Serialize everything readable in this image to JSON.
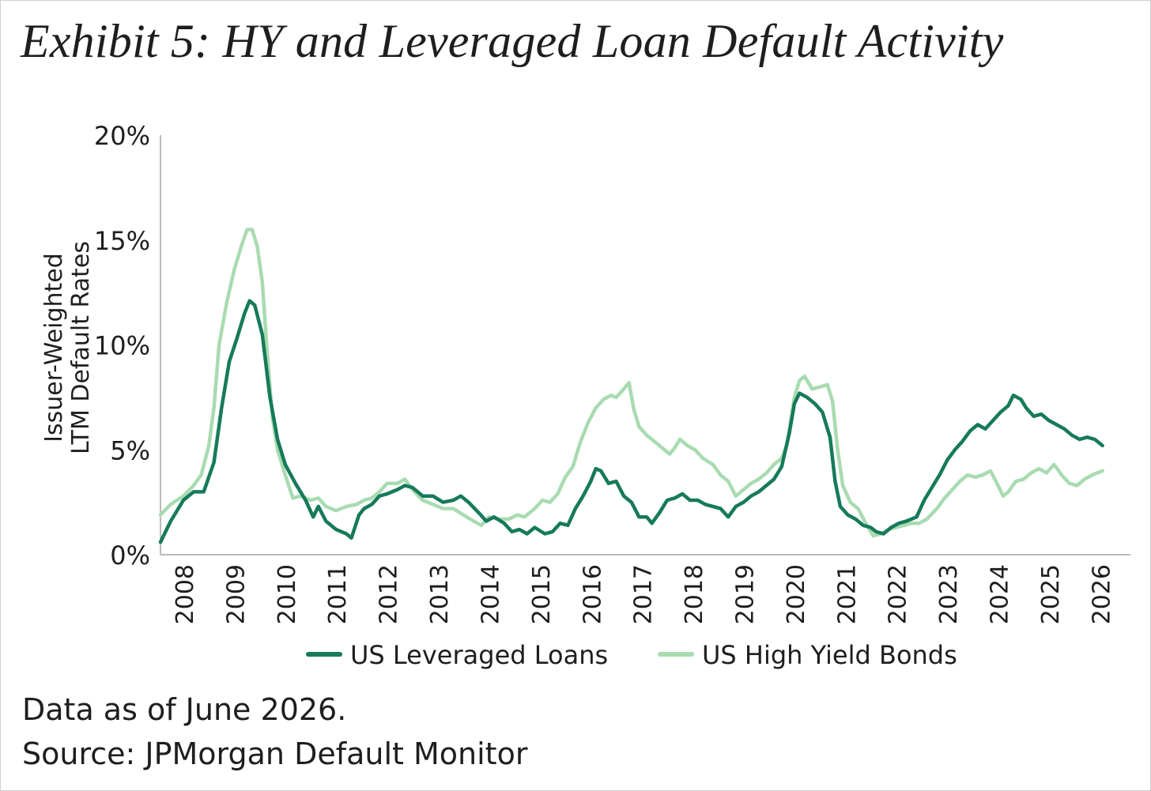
{
  "title": "Exhibit 5: HY and Leveraged Loan Default Activity",
  "footnote": "Data as of June 2026.",
  "source": "Source: JPMorgan Default Monitor",
  "colors": {
    "loans": "#167a5b",
    "bonds": "#a9dbb1",
    "axis": "#bbbbbb",
    "text": "#1e1e1e"
  },
  "chart_data": {
    "type": "line",
    "ylabel": [
      "Issuer-Weighted",
      "LTM Default Rates"
    ],
    "xlabel": "",
    "ylim": [
      0,
      20
    ],
    "xlim": [
      2007.55,
      2026.6
    ],
    "yticks": [
      "0%",
      "5%",
      "10%",
      "15%",
      "20%"
    ],
    "xticks": [
      "2008",
      "2009",
      "2010",
      "2011",
      "2012",
      "2013",
      "2014",
      "2015",
      "2016",
      "2017",
      "2018",
      "2019",
      "2020",
      "2021",
      "2022",
      "2023",
      "2024",
      "2025",
      "2026"
    ],
    "grid": false,
    "legend": "bottom-center",
    "series": [
      {
        "name": "US Leveraged Loans",
        "points": [
          [
            2007.55,
            0.6
          ],
          [
            2007.75,
            1.6
          ],
          [
            2008.0,
            2.6
          ],
          [
            2008.2,
            3.0
          ],
          [
            2008.4,
            3.0
          ],
          [
            2008.6,
            4.4
          ],
          [
            2008.75,
            7.0
          ],
          [
            2008.9,
            9.2
          ],
          [
            2009.05,
            10.3
          ],
          [
            2009.2,
            11.5
          ],
          [
            2009.3,
            12.1
          ],
          [
            2009.4,
            11.9
          ],
          [
            2009.55,
            10.5
          ],
          [
            2009.7,
            7.5
          ],
          [
            2009.85,
            5.5
          ],
          [
            2010.0,
            4.3
          ],
          [
            2010.2,
            3.4
          ],
          [
            2010.4,
            2.6
          ],
          [
            2010.55,
            1.8
          ],
          [
            2010.65,
            2.3
          ],
          [
            2010.8,
            1.6
          ],
          [
            2011.0,
            1.2
          ],
          [
            2011.2,
            1.0
          ],
          [
            2011.3,
            0.8
          ],
          [
            2011.45,
            1.9
          ],
          [
            2011.55,
            2.2
          ],
          [
            2011.7,
            2.4
          ],
          [
            2011.85,
            2.8
          ],
          [
            2012.0,
            2.9
          ],
          [
            2012.2,
            3.1
          ],
          [
            2012.35,
            3.3
          ],
          [
            2012.5,
            3.2
          ],
          [
            2012.7,
            2.8
          ],
          [
            2012.9,
            2.8
          ],
          [
            2013.1,
            2.5
          ],
          [
            2013.3,
            2.6
          ],
          [
            2013.45,
            2.8
          ],
          [
            2013.6,
            2.5
          ],
          [
            2013.8,
            2.0
          ],
          [
            2013.95,
            1.6
          ],
          [
            2014.1,
            1.8
          ],
          [
            2014.3,
            1.5
          ],
          [
            2014.45,
            1.1
          ],
          [
            2014.6,
            1.2
          ],
          [
            2014.75,
            1.0
          ],
          [
            2014.9,
            1.3
          ],
          [
            2015.1,
            1.0
          ],
          [
            2015.25,
            1.1
          ],
          [
            2015.4,
            1.5
          ],
          [
            2015.55,
            1.4
          ],
          [
            2015.7,
            2.2
          ],
          [
            2015.85,
            2.8
          ],
          [
            2016.0,
            3.5
          ],
          [
            2016.1,
            4.1
          ],
          [
            2016.2,
            4.0
          ],
          [
            2016.35,
            3.4
          ],
          [
            2016.5,
            3.5
          ],
          [
            2016.65,
            2.8
          ],
          [
            2016.8,
            2.5
          ],
          [
            2016.95,
            1.8
          ],
          [
            2017.1,
            1.8
          ],
          [
            2017.2,
            1.5
          ],
          [
            2017.35,
            2.0
          ],
          [
            2017.5,
            2.6
          ],
          [
            2017.65,
            2.7
          ],
          [
            2017.8,
            2.9
          ],
          [
            2017.95,
            2.6
          ],
          [
            2018.1,
            2.6
          ],
          [
            2018.25,
            2.4
          ],
          [
            2018.4,
            2.3
          ],
          [
            2018.55,
            2.2
          ],
          [
            2018.7,
            1.8
          ],
          [
            2018.85,
            2.3
          ],
          [
            2019.0,
            2.5
          ],
          [
            2019.15,
            2.8
          ],
          [
            2019.3,
            3.0
          ],
          [
            2019.45,
            3.3
          ],
          [
            2019.6,
            3.6
          ],
          [
            2019.75,
            4.2
          ],
          [
            2019.9,
            5.8
          ],
          [
            2020.0,
            7.2
          ],
          [
            2020.1,
            7.7
          ],
          [
            2020.25,
            7.5
          ],
          [
            2020.4,
            7.2
          ],
          [
            2020.55,
            6.8
          ],
          [
            2020.7,
            5.6
          ],
          [
            2020.8,
            3.5
          ],
          [
            2020.9,
            2.3
          ],
          [
            2021.05,
            1.9
          ],
          [
            2021.2,
            1.7
          ],
          [
            2021.35,
            1.4
          ],
          [
            2021.5,
            1.3
          ],
          [
            2021.6,
            1.1
          ],
          [
            2021.75,
            1.0
          ],
          [
            2021.9,
            1.3
          ],
          [
            2022.05,
            1.5
          ],
          [
            2022.2,
            1.6
          ],
          [
            2022.4,
            1.8
          ],
          [
            2022.55,
            2.6
          ],
          [
            2022.7,
            3.2
          ],
          [
            2022.85,
            3.8
          ],
          [
            2023.0,
            4.5
          ],
          [
            2023.15,
            5.0
          ],
          [
            2023.3,
            5.4
          ],
          [
            2023.45,
            5.9
          ],
          [
            2023.6,
            6.2
          ],
          [
            2023.75,
            6.0
          ],
          [
            2023.9,
            6.4
          ],
          [
            2024.05,
            6.8
          ],
          [
            2024.2,
            7.1
          ],
          [
            2024.3,
            7.6
          ],
          [
            2024.45,
            7.4
          ],
          [
            2024.55,
            7.0
          ],
          [
            2024.7,
            6.6
          ],
          [
            2024.85,
            6.7
          ],
          [
            2025.0,
            6.4
          ],
          [
            2025.15,
            6.2
          ],
          [
            2025.3,
            6.0
          ],
          [
            2025.45,
            5.7
          ],
          [
            2025.6,
            5.5
          ],
          [
            2025.75,
            5.6
          ],
          [
            2025.9,
            5.5
          ],
          [
            2026.05,
            5.2
          ]
        ]
      },
      {
        "name": "US High Yield Bonds",
        "points": [
          [
            2007.55,
            1.9
          ],
          [
            2007.75,
            2.4
          ],
          [
            2008.0,
            2.8
          ],
          [
            2008.2,
            3.3
          ],
          [
            2008.35,
            3.8
          ],
          [
            2008.5,
            5.2
          ],
          [
            2008.6,
            7.0
          ],
          [
            2008.7,
            10.0
          ],
          [
            2008.85,
            12.0
          ],
          [
            2009.0,
            13.6
          ],
          [
            2009.15,
            14.8
          ],
          [
            2009.25,
            15.5
          ],
          [
            2009.35,
            15.5
          ],
          [
            2009.45,
            14.7
          ],
          [
            2009.55,
            13.0
          ],
          [
            2009.65,
            9.5
          ],
          [
            2009.75,
            6.5
          ],
          [
            2009.85,
            5.0
          ],
          [
            2010.0,
            3.8
          ],
          [
            2010.15,
            2.7
          ],
          [
            2010.3,
            2.8
          ],
          [
            2010.5,
            2.6
          ],
          [
            2010.65,
            2.7
          ],
          [
            2010.8,
            2.3
          ],
          [
            2011.0,
            2.1
          ],
          [
            2011.2,
            2.3
          ],
          [
            2011.4,
            2.4
          ],
          [
            2011.55,
            2.6
          ],
          [
            2011.7,
            2.7
          ],
          [
            2011.85,
            3.0
          ],
          [
            2012.0,
            3.4
          ],
          [
            2012.2,
            3.4
          ],
          [
            2012.35,
            3.6
          ],
          [
            2012.5,
            3.1
          ],
          [
            2012.7,
            2.6
          ],
          [
            2012.9,
            2.4
          ],
          [
            2013.1,
            2.2
          ],
          [
            2013.3,
            2.2
          ],
          [
            2013.5,
            1.9
          ],
          [
            2013.7,
            1.6
          ],
          [
            2013.85,
            1.4
          ],
          [
            2014.0,
            1.8
          ],
          [
            2014.2,
            1.7
          ],
          [
            2014.4,
            1.7
          ],
          [
            2014.55,
            1.9
          ],
          [
            2014.7,
            1.8
          ],
          [
            2014.9,
            2.2
          ],
          [
            2015.05,
            2.6
          ],
          [
            2015.2,
            2.5
          ],
          [
            2015.35,
            2.9
          ],
          [
            2015.5,
            3.7
          ],
          [
            2015.65,
            4.2
          ],
          [
            2015.8,
            5.4
          ],
          [
            2015.95,
            6.3
          ],
          [
            2016.1,
            7.0
          ],
          [
            2016.25,
            7.4
          ],
          [
            2016.4,
            7.6
          ],
          [
            2016.5,
            7.5
          ],
          [
            2016.65,
            7.9
          ],
          [
            2016.75,
            8.2
          ],
          [
            2016.85,
            6.9
          ],
          [
            2016.95,
            6.1
          ],
          [
            2017.1,
            5.7
          ],
          [
            2017.25,
            5.4
          ],
          [
            2017.4,
            5.1
          ],
          [
            2017.55,
            4.8
          ],
          [
            2017.65,
            5.1
          ],
          [
            2017.75,
            5.5
          ],
          [
            2017.9,
            5.2
          ],
          [
            2018.05,
            5.0
          ],
          [
            2018.2,
            4.6
          ],
          [
            2018.4,
            4.3
          ],
          [
            2018.55,
            3.8
          ],
          [
            2018.7,
            3.5
          ],
          [
            2018.85,
            2.8
          ],
          [
            2019.0,
            3.1
          ],
          [
            2019.15,
            3.4
          ],
          [
            2019.3,
            3.6
          ],
          [
            2019.45,
            3.9
          ],
          [
            2019.6,
            4.3
          ],
          [
            2019.75,
            4.6
          ],
          [
            2019.85,
            5.2
          ],
          [
            2020.0,
            7.5
          ],
          [
            2020.1,
            8.3
          ],
          [
            2020.2,
            8.5
          ],
          [
            2020.35,
            7.9
          ],
          [
            2020.5,
            8.0
          ],
          [
            2020.65,
            8.1
          ],
          [
            2020.75,
            7.3
          ],
          [
            2020.85,
            5.0
          ],
          [
            2020.95,
            3.3
          ],
          [
            2021.1,
            2.5
          ],
          [
            2021.25,
            2.2
          ],
          [
            2021.4,
            1.5
          ],
          [
            2021.55,
            0.9
          ],
          [
            2021.7,
            1.0
          ],
          [
            2021.85,
            1.2
          ],
          [
            2022.0,
            1.3
          ],
          [
            2022.15,
            1.4
          ],
          [
            2022.3,
            1.5
          ],
          [
            2022.45,
            1.5
          ],
          [
            2022.6,
            1.7
          ],
          [
            2022.8,
            2.2
          ],
          [
            2022.95,
            2.7
          ],
          [
            2023.1,
            3.1
          ],
          [
            2023.25,
            3.5
          ],
          [
            2023.4,
            3.8
          ],
          [
            2023.55,
            3.7
          ],
          [
            2023.7,
            3.8
          ],
          [
            2023.85,
            4.0
          ],
          [
            2024.0,
            3.3
          ],
          [
            2024.1,
            2.8
          ],
          [
            2024.2,
            3.0
          ],
          [
            2024.35,
            3.5
          ],
          [
            2024.5,
            3.6
          ],
          [
            2024.65,
            3.9
          ],
          [
            2024.8,
            4.1
          ],
          [
            2024.95,
            3.9
          ],
          [
            2025.1,
            4.3
          ],
          [
            2025.25,
            3.8
          ],
          [
            2025.4,
            3.4
          ],
          [
            2025.55,
            3.3
          ],
          [
            2025.7,
            3.6
          ],
          [
            2025.85,
            3.8
          ],
          [
            2026.05,
            4.0
          ]
        ]
      }
    ]
  }
}
